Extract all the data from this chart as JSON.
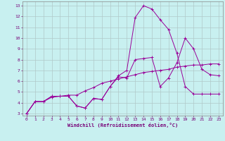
{
  "xlabel": "Windchill (Refroidissement éolien,°C)",
  "background_color": "#c8f0f0",
  "grid_color": "#b0c8c8",
  "line_color": "#990099",
  "xlim": [
    -0.5,
    23.5
  ],
  "ylim": [
    2.8,
    13.4
  ],
  "xticks": [
    0,
    1,
    2,
    3,
    4,
    5,
    6,
    7,
    8,
    9,
    10,
    11,
    12,
    13,
    14,
    15,
    16,
    17,
    18,
    19,
    20,
    21,
    22,
    23
  ],
  "yticks": [
    3,
    4,
    5,
    6,
    7,
    8,
    9,
    10,
    11,
    12,
    13
  ],
  "line1_x": [
    0,
    1,
    2,
    3,
    4,
    5,
    6,
    7,
    8,
    9,
    10,
    11,
    12,
    13,
    14,
    15,
    16,
    17,
    18,
    19,
    20,
    21,
    22,
    23
  ],
  "line1_y": [
    3.0,
    4.1,
    4.1,
    4.6,
    4.6,
    4.6,
    3.7,
    3.5,
    4.4,
    4.3,
    5.5,
    6.4,
    6.3,
    8.0,
    8.1,
    8.2,
    5.5,
    6.3,
    7.7,
    10.0,
    9.0,
    7.1,
    6.6,
    6.5
  ],
  "line2_x": [
    0,
    1,
    2,
    3,
    4,
    5,
    6,
    7,
    8,
    9,
    10,
    11,
    12,
    13,
    14,
    15,
    16,
    17,
    18,
    19,
    20,
    21,
    22,
    23
  ],
  "line2_y": [
    3.0,
    4.1,
    4.1,
    4.6,
    4.6,
    4.6,
    3.7,
    3.5,
    4.4,
    4.3,
    5.5,
    6.5,
    7.0,
    11.9,
    13.0,
    12.7,
    11.7,
    10.8,
    8.6,
    5.5,
    4.8,
    4.8,
    4.8,
    4.8
  ],
  "line3_x": [
    0,
    1,
    2,
    3,
    4,
    5,
    6,
    7,
    8,
    9,
    10,
    11,
    12,
    13,
    14,
    15,
    16,
    17,
    18,
    19,
    20,
    21,
    22,
    23
  ],
  "line3_y": [
    3.0,
    4.1,
    4.1,
    4.5,
    4.6,
    4.7,
    4.7,
    5.1,
    5.4,
    5.8,
    6.0,
    6.2,
    6.4,
    6.6,
    6.8,
    6.9,
    7.0,
    7.1,
    7.3,
    7.4,
    7.5,
    7.5,
    7.6,
    7.6
  ]
}
